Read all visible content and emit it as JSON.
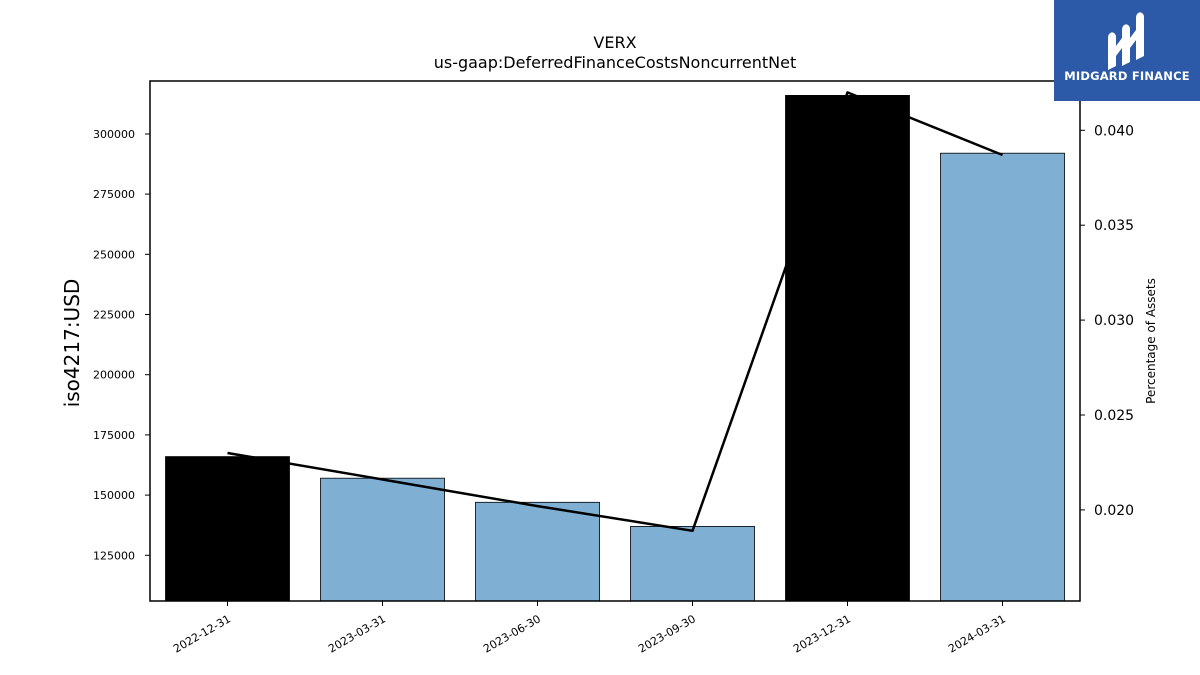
{
  "brand": {
    "name": "MIDGARD FINANCE",
    "logo_color": "#2c5aa8",
    "logo_icon": "midgard-logo-icon"
  },
  "chart_data": {
    "type": "bar",
    "title": "VERX",
    "subtitle": "us-gaap:DeferredFinanceCostsNoncurrentNet",
    "categories": [
      "2022-12-31",
      "2023-03-31",
      "2023-06-30",
      "2023-09-30",
      "2023-12-31",
      "2024-03-31"
    ],
    "ylabel": "iso4217:USD",
    "y2label": "Percentage of Assets",
    "ylim": [
      106000,
      322000
    ],
    "y2lim": [
      0.0152,
      0.0426
    ],
    "yticks": [
      "125000",
      "150000",
      "175000",
      "200000",
      "225000",
      "250000",
      "275000",
      "300000"
    ],
    "yticks_values": [
      125000,
      150000,
      175000,
      200000,
      225000,
      250000,
      275000,
      300000
    ],
    "y2ticks": [
      "0.020",
      "0.025",
      "0.030",
      "0.035",
      "0.040"
    ],
    "y2ticks_values": [
      0.02,
      0.025,
      0.03,
      0.035,
      0.04
    ],
    "series": [
      {
        "type": "bar",
        "values": [
          166000,
          157000,
          147000,
          137000,
          316000,
          292000
        ],
        "colors": [
          "#000000",
          "#7fb0d3",
          "#7fb0d3",
          "#7fb0d3",
          "#000000",
          "#7fb0d3"
        ]
      },
      {
        "type": "line",
        "axis": "right",
        "values": [
          0.023,
          0.0216,
          0.0202,
          0.0189,
          0.042,
          0.0387
        ],
        "color": "#000000"
      }
    ],
    "grid": false
  }
}
